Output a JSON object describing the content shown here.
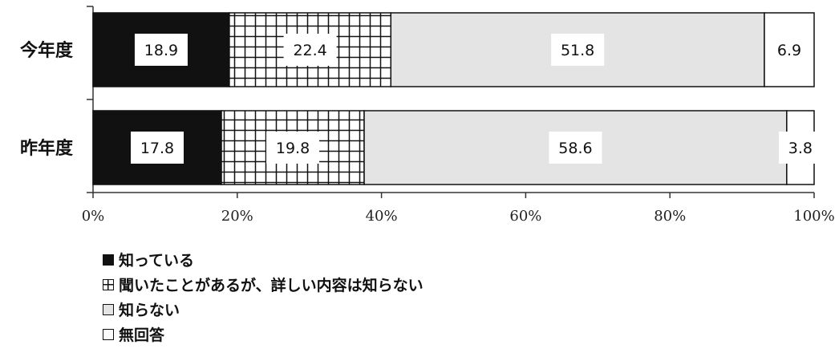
{
  "chart_data": {
    "type": "bar",
    "orientation": "horizontal",
    "stacked": true,
    "categories": [
      "今年度",
      "昨年度"
    ],
    "series": [
      {
        "name": "知っている",
        "values": [
          18.9,
          17.8
        ],
        "fill": "solid",
        "color": "#111111"
      },
      {
        "name": "聞いたことがあるが、詳しい内容は知らない",
        "values": [
          22.4,
          19.8
        ],
        "fill": "grid",
        "color": "#ffffff"
      },
      {
        "name": "知らない",
        "values": [
          51.8,
          58.6
        ],
        "fill": "light-gray",
        "color": "#e4e4e4"
      },
      {
        "name": "無回答",
        "values": [
          6.9,
          3.8
        ],
        "fill": "white",
        "color": "#ffffff"
      }
    ],
    "xlim": [
      0,
      100
    ],
    "xticks": [
      "0%",
      "20%",
      "40%",
      "60%",
      "80%",
      "100%"
    ],
    "legend_position": "bottom-left",
    "grid": false
  }
}
